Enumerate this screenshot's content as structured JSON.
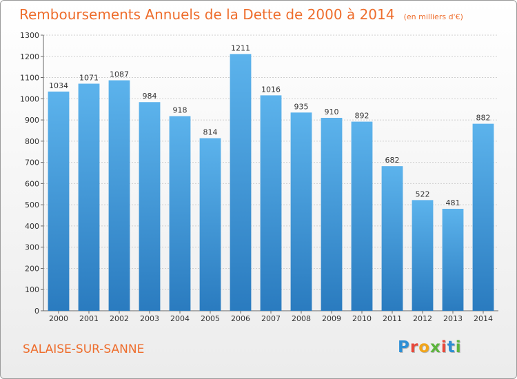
{
  "header": {
    "title": "Remboursements Annuels de la Dette de 2000 à 2014",
    "subtitle": "(en milliers d'€)"
  },
  "commune": "SALAISE-SUR-SANNE",
  "logo": {
    "text": "Proxiti",
    "letter_colors": [
      "#2d8fd5",
      "#e8483a",
      "#f2a51a",
      "#5cb53c",
      "#e8483a",
      "#2d8fd5",
      "#5cb53c"
    ]
  },
  "colors": {
    "bar_light": "#5cb3ec",
    "bar_dark": "#2a7bbf",
    "accent": "#ee6d2c"
  },
  "chart_data": {
    "type": "bar",
    "title": "Remboursements Annuels de la Dette de 2000 à 2014",
    "subtitle": "(en milliers d'€)",
    "xlabel": "",
    "ylabel": "",
    "categories": [
      "2000",
      "2001",
      "2002",
      "2003",
      "2004",
      "2005",
      "2006",
      "2007",
      "2008",
      "2009",
      "2010",
      "2011",
      "2012",
      "2013",
      "2014"
    ],
    "values": [
      1034,
      1071,
      1087,
      984,
      918,
      814,
      1211,
      1016,
      935,
      910,
      892,
      682,
      522,
      481,
      882
    ],
    "ylim": [
      0,
      1300
    ],
    "yticks": [
      0,
      100,
      200,
      300,
      400,
      500,
      600,
      700,
      800,
      900,
      1000,
      1100,
      1200,
      1300
    ],
    "grid": true,
    "legend": "none"
  }
}
